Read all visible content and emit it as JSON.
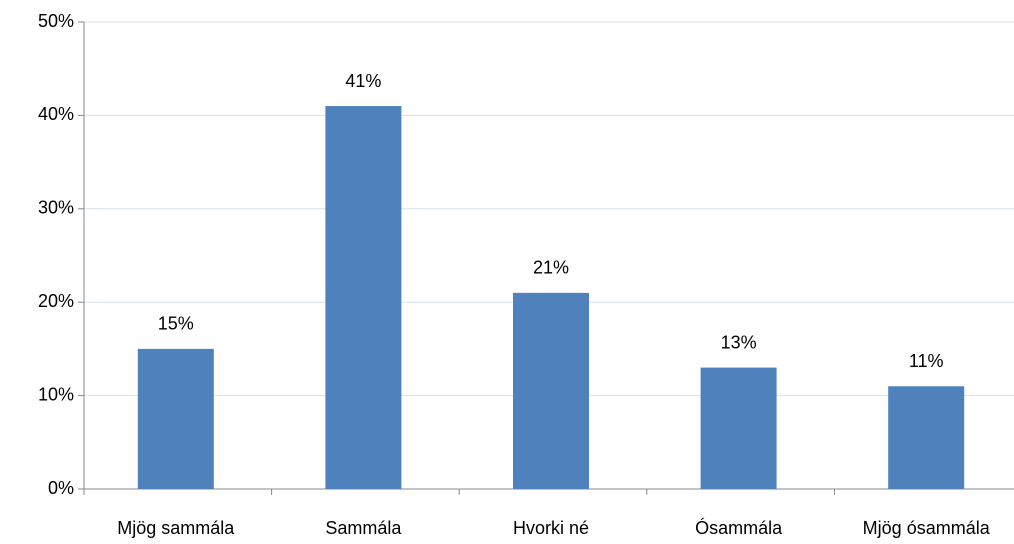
{
  "chart_data": {
    "type": "bar",
    "categories": [
      "Mjög sammála",
      "Sammála",
      "Hvorki né",
      "Ósammála",
      "Mjög ósammála"
    ],
    "values": [
      15,
      41,
      21,
      13,
      11
    ],
    "value_labels": [
      "15%",
      "41%",
      "21%",
      "13%",
      "11%"
    ],
    "color": "#4f81bd",
    "ylim": [
      0,
      50
    ],
    "yticks": [
      {
        "value": 0,
        "label": "0%"
      },
      {
        "value": 10,
        "label": "10%"
      },
      {
        "value": 20,
        "label": "20%"
      },
      {
        "value": 30,
        "label": "30%"
      },
      {
        "value": 40,
        "label": "40%"
      },
      {
        "value": 50,
        "label": "50%"
      }
    ],
    "grid": true
  }
}
